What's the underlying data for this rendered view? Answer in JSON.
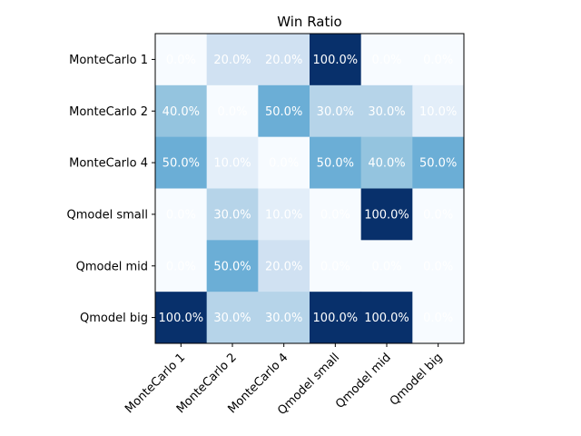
{
  "chart_data": {
    "type": "heatmap",
    "title": "Win Ratio",
    "xlabel": "",
    "ylabel": "",
    "rows": [
      "MonteCarlo 1",
      "MonteCarlo 2",
      "MonteCarlo 4",
      "Qmodel small",
      "Qmodel mid",
      "Qmodel big"
    ],
    "columns": [
      "MonteCarlo 1",
      "MonteCarlo 2",
      "MonteCarlo 4",
      "Qmodel small",
      "Qmodel mid",
      "Qmodel big"
    ],
    "values": [
      [
        0.0,
        20.0,
        20.0,
        100.0,
        0.0,
        0.0
      ],
      [
        40.0,
        0.0,
        50.0,
        30.0,
        30.0,
        10.0
      ],
      [
        50.0,
        10.0,
        0.0,
        50.0,
        40.0,
        50.0
      ],
      [
        0.0,
        30.0,
        10.0,
        0.0,
        100.0,
        0.0
      ],
      [
        0.0,
        50.0,
        20.0,
        0.0,
        0.0,
        0.0
      ],
      [
        100.0,
        30.0,
        30.0,
        100.0,
        100.0,
        0.0
      ]
    ],
    "value_format": "{v}%",
    "value_range": [
      0,
      100
    ],
    "colormap": "Blues",
    "grid": false,
    "legend": "none",
    "x_tick_rotation": 45,
    "cell_label_color": "#ffffff"
  }
}
